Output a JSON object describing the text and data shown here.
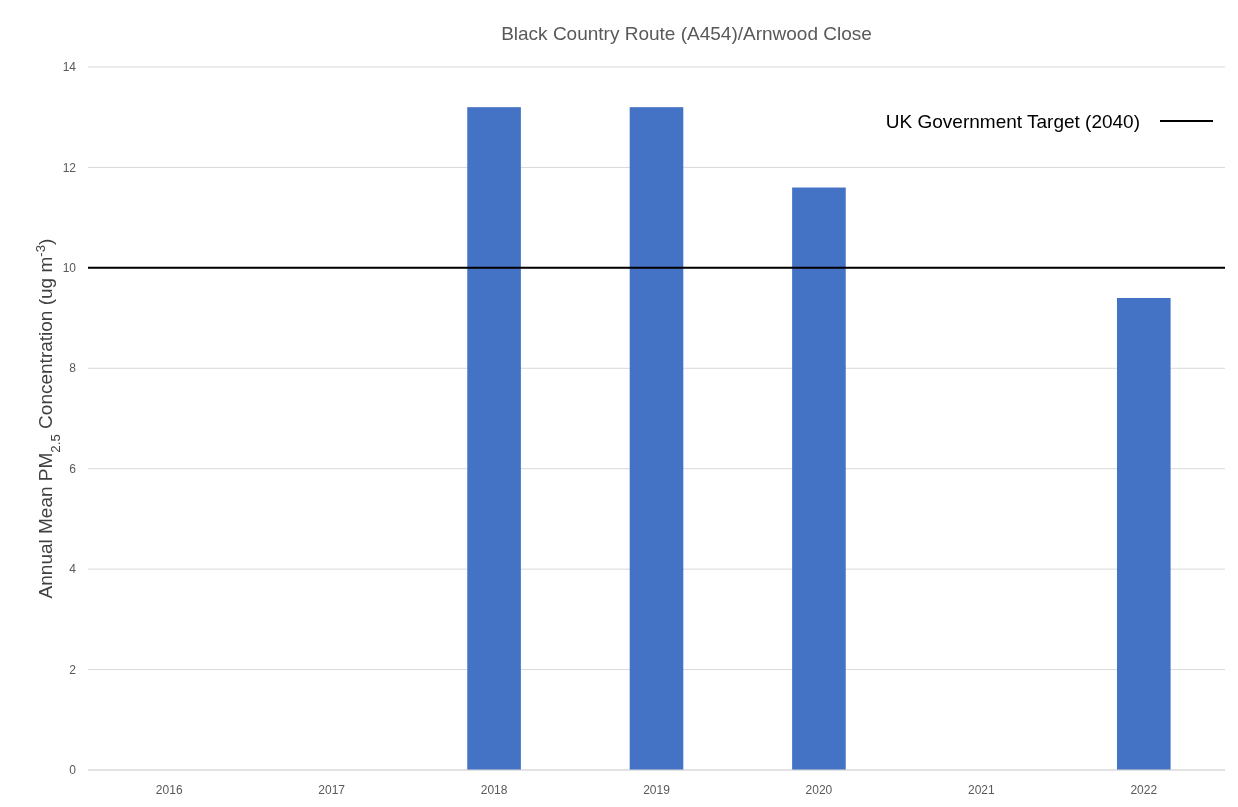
{
  "chart_data": {
    "type": "bar",
    "title": "Black Country Route (A454)/Arnwood Close",
    "ylabel": "Annual Mean PM$_{2.5}$ Concentration (ug m$^{-3}$)",
    "categories": [
      "2016",
      "2017",
      "2018",
      "2019",
      "2020",
      "2021",
      "2022"
    ],
    "values": [
      null,
      null,
      13.2,
      13.2,
      11.6,
      null,
      9.4
    ],
    "color": "#4472c4",
    "ylim": [
      0,
      14
    ],
    "yticks": [
      0,
      2,
      4,
      6,
      8,
      10,
      12,
      14
    ],
    "grid": "y",
    "ref_lines": [
      {
        "axis": "y",
        "value": 10,
        "label": "UK Government  Target (2040)",
        "color": "#000000"
      }
    ],
    "legend": "top right"
  }
}
